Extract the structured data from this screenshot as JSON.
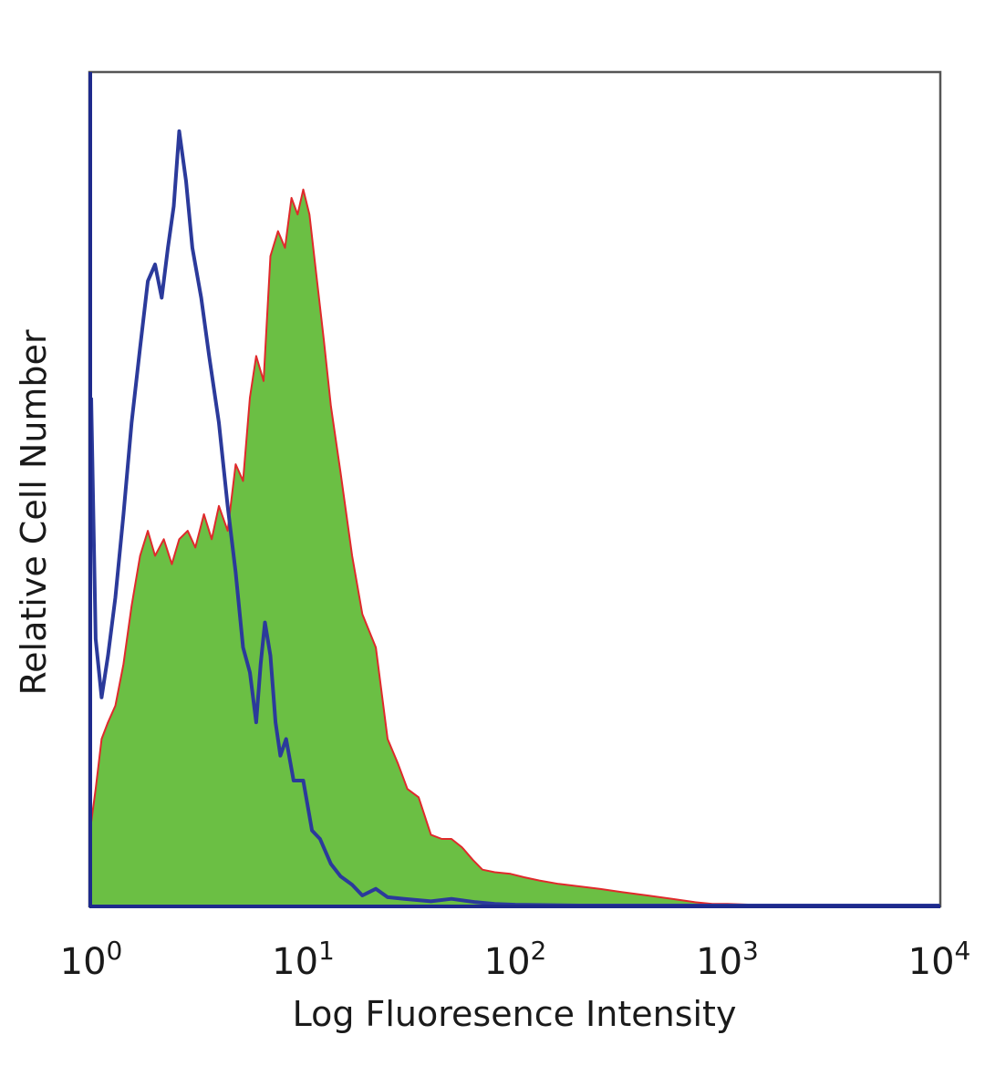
{
  "chart_data": {
    "type": "area",
    "xlabel": "Log Fluoresence Intensity",
    "ylabel": "Relative Cell Number",
    "xscale": "log",
    "xlim": [
      1,
      10000
    ],
    "ylim": [
      0,
      100
    ],
    "x_ticks": [
      {
        "base": "10",
        "exp": "0",
        "value": 1
      },
      {
        "base": "10",
        "exp": "1",
        "value": 10
      },
      {
        "base": "10",
        "exp": "2",
        "value": 100
      },
      {
        "base": "10",
        "exp": "3",
        "value": 1000
      },
      {
        "base": "10",
        "exp": "4",
        "value": 10000
      }
    ],
    "grid": false,
    "legend": "none",
    "series": [
      {
        "style": "filled",
        "fill_color": "#6bbf44",
        "edge_color": "#e0292b",
        "x": [
          1.0,
          1.05,
          1.12,
          1.2,
          1.3,
          1.42,
          1.55,
          1.7,
          1.85,
          2.0,
          2.2,
          2.4,
          2.6,
          2.85,
          3.1,
          3.4,
          3.7,
          4.0,
          4.4,
          4.8,
          5.2,
          5.6,
          6.0,
          6.5,
          7.0,
          7.6,
          8.2,
          8.8,
          9.4,
          10.0,
          10.7,
          11.5,
          12.5,
          13.5,
          15.0,
          17.0,
          19.0,
          22.0,
          25.0,
          28.0,
          31.0,
          35.0,
          40.0,
          45.0,
          50.0,
          56.0,
          63.0,
          70.0,
          80.0,
          95.0,
          110.0,
          130.0,
          160.0,
          200.0,
          250.0,
          320.0,
          420.0,
          550.0,
          700.0,
          850.0,
          1000.0,
          1300.0,
          1700.0,
          2200.0,
          3000.0,
          5000.0,
          10000.0
        ],
        "y": [
          10,
          14,
          20,
          22,
          24,
          29,
          36,
          42,
          45,
          42,
          44,
          41,
          44,
          45,
          43,
          47,
          44,
          48,
          45,
          53,
          51,
          61,
          66,
          63,
          78,
          81,
          79,
          85,
          83,
          86,
          83,
          76,
          68,
          60,
          52,
          42,
          35,
          31,
          20,
          17,
          14,
          13,
          8.5,
          8.0,
          8.0,
          7.0,
          5.5,
          4.3,
          4.0,
          3.8,
          3.4,
          3.0,
          2.6,
          2.3,
          2.0,
          1.6,
          1.2,
          0.8,
          0.4,
          0.2,
          0.2,
          0.1,
          0.1,
          0.0,
          0.0,
          0.0,
          0.0
        ]
      },
      {
        "style": "outline",
        "color": "#2b3a9b",
        "x": [
          1.0,
          1.05,
          1.12,
          1.2,
          1.3,
          1.42,
          1.55,
          1.7,
          1.85,
          2.0,
          2.15,
          2.3,
          2.45,
          2.6,
          2.8,
          3.0,
          3.3,
          3.6,
          4.0,
          4.4,
          4.8,
          5.2,
          5.6,
          6.0,
          6.3,
          6.6,
          7.0,
          7.4,
          7.8,
          8.3,
          9.0,
          10.0,
          11.0,
          12.0,
          13.5,
          15.0,
          17.0,
          19.0,
          22.0,
          25.0,
          30.0,
          40.0,
          50.0,
          65.0,
          80.0,
          100.0,
          200.0,
          10000.0
        ],
        "y": [
          61,
          32,
          25,
          30,
          37,
          47,
          58,
          67,
          75,
          77,
          73,
          79,
          84,
          93,
          87,
          79,
          73,
          66,
          58,
          48,
          40,
          31,
          28,
          22,
          29,
          34,
          30,
          22,
          18,
          20,
          15,
          15,
          9,
          8,
          5,
          3.5,
          2.5,
          1.2,
          2.0,
          1.0,
          0.8,
          0.5,
          0.8,
          0.4,
          0.2,
          0.1,
          0.0,
          0.0
        ]
      }
    ]
  }
}
